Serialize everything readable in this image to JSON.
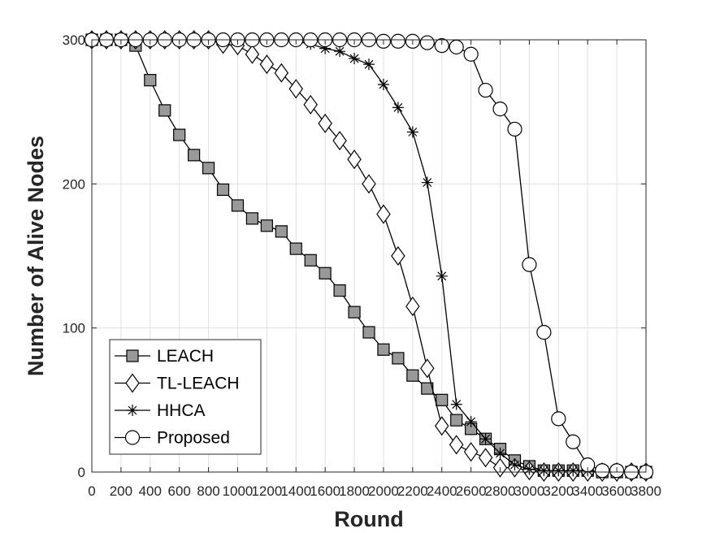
{
  "chart_data": {
    "type": "line",
    "xlabel": "Round",
    "ylabel": "Number of Alive Nodes",
    "xlim": [
      0,
      3800
    ],
    "ylim": [
      0,
      300
    ],
    "x_ticks": [
      0,
      200,
      400,
      600,
      800,
      1000,
      1200,
      1400,
      1600,
      1800,
      2000,
      2200,
      2400,
      2600,
      2800,
      3000,
      3200,
      3400,
      3600,
      3800
    ],
    "y_ticks": [
      0,
      100,
      200,
      300
    ],
    "x_tick_labels": [
      "0",
      "200",
      "400",
      "600",
      "800",
      "1000",
      "1200",
      "1400",
      "1600",
      "1800",
      "2000",
      "2200",
      "2400",
      "2600",
      "2800",
      "3000",
      "3200",
      "3400",
      "3600",
      "3800"
    ],
    "y_tick_labels": [
      "0",
      "100",
      "200",
      "300"
    ],
    "grid": true,
    "legend_position": "bottom-left",
    "colors": {
      "line": "#000000",
      "square_fill": "#999999",
      "open_fill": "#ffffff",
      "grid": "#e0e0e0",
      "axis": "#262626"
    },
    "x": [
      0,
      100,
      200,
      300,
      400,
      500,
      600,
      700,
      800,
      900,
      1000,
      1100,
      1200,
      1300,
      1400,
      1500,
      1600,
      1700,
      1800,
      1900,
      2000,
      2100,
      2200,
      2300,
      2400,
      2500,
      2600,
      2700,
      2800,
      2900,
      3000,
      3100,
      3200,
      3300,
      3400,
      3500,
      3600,
      3700,
      3800
    ],
    "series": [
      {
        "name": "LEACH",
        "marker": "square",
        "values": [
          300,
          300,
          300,
          296,
          272,
          251,
          234,
          220,
          211,
          196,
          185,
          176,
          171,
          167,
          155,
          147,
          138,
          126,
          111,
          97,
          85,
          79,
          67,
          58,
          50,
          36,
          30,
          23,
          16,
          8,
          4,
          1,
          1,
          1,
          1,
          0,
          0,
          0,
          0
        ]
      },
      {
        "name": "TL-LEACH",
        "marker": "diamond",
        "values": [
          300,
          300,
          300,
          300,
          300,
          300,
          300,
          300,
          300,
          297,
          296,
          290,
          283,
          277,
          266,
          255,
          242,
          230,
          217,
          200,
          179,
          150,
          115,
          72,
          32,
          19,
          14,
          10,
          3,
          3,
          1,
          0,
          0,
          0,
          0,
          0,
          0,
          0,
          0
        ]
      },
      {
        "name": "HHCA",
        "marker": "asterisk",
        "values": [
          300,
          300,
          300,
          300,
          300,
          300,
          300,
          300,
          300,
          300,
          300,
          300,
          300,
          300,
          299,
          297,
          294,
          292,
          287,
          283,
          269,
          253,
          236,
          201,
          136,
          47,
          35,
          23,
          13,
          5,
          2,
          1,
          1,
          1,
          1,
          0,
          0,
          0,
          0
        ]
      },
      {
        "name": "Proposed",
        "marker": "circle",
        "values": [
          300,
          300,
          300,
          300,
          300,
          300,
          300,
          300,
          300,
          300,
          300,
          300,
          300,
          300,
          300,
          300,
          300,
          300,
          300,
          300,
          299,
          299,
          299,
          298,
          296,
          295,
          290,
          265,
          252,
          238,
          144,
          97,
          37,
          21,
          5,
          1,
          1,
          0,
          0
        ]
      }
    ]
  }
}
